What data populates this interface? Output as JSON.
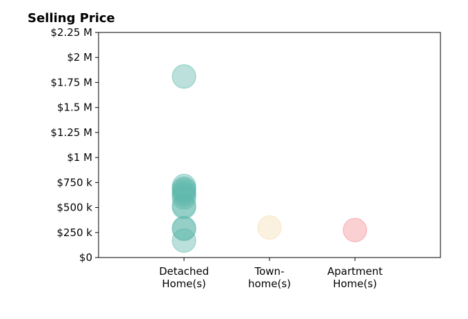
{
  "chart_data": {
    "type": "scatter",
    "title": "Selling Price",
    "xlabel": "",
    "ylabel": "",
    "categories": [
      [
        "Detached",
        "Home(s)"
      ],
      [
        "Town-",
        "home(s)"
      ],
      [
        "Apartment",
        "Home(s)"
      ]
    ],
    "ylim": [
      0,
      2250000
    ],
    "y_ticks": [
      0,
      250000,
      500000,
      750000,
      1000000,
      1250000,
      1500000,
      1750000,
      2000000,
      2250000
    ],
    "y_tick_labels": [
      "$0",
      "$250 k",
      "$500 k",
      "$750 k",
      "$1 M",
      "$1.25 M",
      "$1.5 M",
      "$1.75 M",
      "$2 M",
      "$2.25 M"
    ],
    "grid": false,
    "legend": "none",
    "colors": [
      "#5fb8ac",
      "#f5deb3",
      "#f28e97"
    ],
    "points": [
      {
        "category": 0,
        "y": 1810000
      },
      {
        "category": 0,
        "y": 715000
      },
      {
        "category": 0,
        "y": 690000
      },
      {
        "category": 0,
        "y": 675000
      },
      {
        "category": 0,
        "y": 655000
      },
      {
        "category": 0,
        "y": 630000
      },
      {
        "category": 0,
        "y": 600000
      },
      {
        "category": 0,
        "y": 520000
      },
      {
        "category": 0,
        "y": 505000
      },
      {
        "category": 0,
        "y": 295000
      },
      {
        "category": 0,
        "y": 285000
      },
      {
        "category": 0,
        "y": 170000
      },
      {
        "category": 1,
        "y": 300000
      },
      {
        "category": 2,
        "y": 275000
      }
    ]
  }
}
